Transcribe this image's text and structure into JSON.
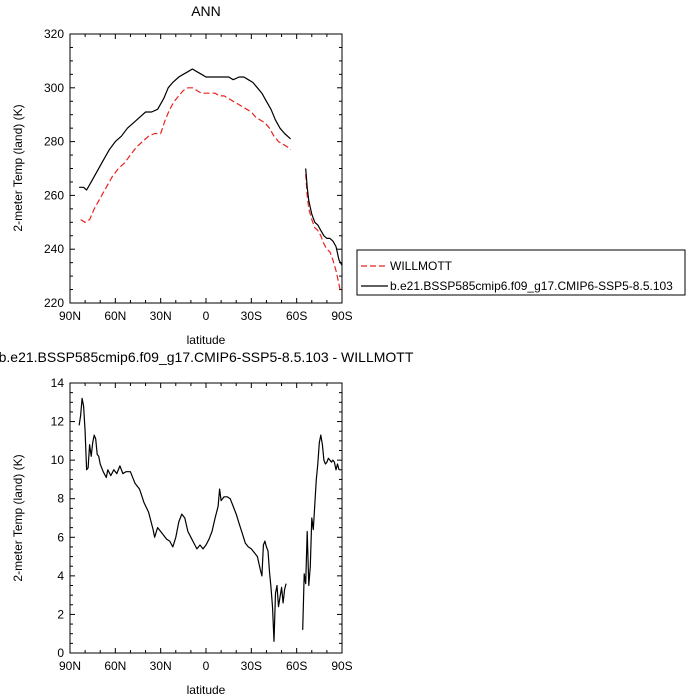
{
  "chart_data": [
    {
      "type": "line",
      "title": "ANN",
      "xlabel": "latitude",
      "ylabel": "2-meter Temp (land) (K)",
      "xlim": [
        90,
        -90
      ],
      "ylim": [
        220,
        320
      ],
      "x_ticks": [
        90,
        60,
        30,
        0,
        -30,
        -60,
        -90
      ],
      "x_tick_labels": [
        "90N",
        "60N",
        "30N",
        "0",
        "30S",
        "60S",
        "90S"
      ],
      "y_ticks": [
        220,
        240,
        260,
        280,
        300,
        320
      ],
      "y_tick_labels": [
        "220",
        "240",
        "260",
        "280",
        "300",
        "320"
      ],
      "legend_position": "right",
      "series": [
        {
          "name": "WILLMOTT",
          "color": "#e8231f",
          "dash": "dashed",
          "segments": [
            [
              [
                83,
                251
              ],
              [
                80,
                250
              ],
              [
                77,
                251
              ],
              [
                74,
                255
              ],
              [
                70,
                259
              ],
              [
                66,
                263
              ],
              [
                62,
                267
              ],
              [
                58,
                270
              ],
              [
                54,
                272
              ],
              [
                50,
                275
              ],
              [
                46,
                278
              ],
              [
                42,
                280
              ],
              [
                38,
                282
              ],
              [
                34,
                283
              ],
              [
                30,
                283
              ],
              [
                27,
                288
              ],
              [
                24,
                292
              ],
              [
                21,
                295
              ],
              [
                18,
                297
              ],
              [
                15,
                299
              ],
              [
                12,
                300
              ],
              [
                9,
                300
              ],
              [
                6,
                299
              ],
              [
                3,
                298
              ],
              [
                0,
                298
              ],
              [
                -3,
                298
              ],
              [
                -6,
                298
              ],
              [
                -9,
                297
              ],
              [
                -12,
                297
              ],
              [
                -15,
                296
              ],
              [
                -18,
                295
              ],
              [
                -21,
                294
              ],
              [
                -24,
                293
              ],
              [
                -27,
                292
              ],
              [
                -30,
                291
              ],
              [
                -33,
                289
              ],
              [
                -36,
                288
              ],
              [
                -39,
                287
              ],
              [
                -42,
                285
              ],
              [
                -45,
                282
              ],
              [
                -48,
                280
              ],
              [
                -51,
                279
              ],
              [
                -54,
                278
              ],
              [
                -56,
                277
              ]
            ],
            [
              [
                -66,
                268
              ],
              [
                -67,
                260
              ],
              [
                -68,
                255
              ],
              [
                -70,
                251
              ],
              [
                -72,
                248
              ],
              [
                -74,
                247
              ],
              [
                -76,
                245
              ],
              [
                -78,
                242
              ],
              [
                -80,
                240
              ],
              [
                -82,
                239
              ],
              [
                -84,
                236
              ],
              [
                -86,
                232
              ],
              [
                -88,
                227
              ],
              [
                -89,
                224
              ]
            ]
          ]
        },
        {
          "name": "b.e21.BSSP585cmip6.f09_g17.CMIP6-SSP5-8.5.103",
          "color": "#000000",
          "dash": "solid",
          "segments": [
            [
              [
                84,
                263
              ],
              [
                81,
                263
              ],
              [
                79,
                262
              ],
              [
                76,
                265
              ],
              [
                72,
                269
              ],
              [
                68,
                273
              ],
              [
                64,
                277
              ],
              [
                60,
                280
              ],
              [
                56,
                282
              ],
              [
                52,
                285
              ],
              [
                48,
                287
              ],
              [
                44,
                289
              ],
              [
                40,
                291
              ],
              [
                36,
                291
              ],
              [
                32,
                292
              ],
              [
                28,
                296
              ],
              [
                25,
                300
              ],
              [
                22,
                302
              ],
              [
                18,
                304
              ],
              [
                15,
                305
              ],
              [
                12,
                306
              ],
              [
                9,
                307
              ],
              [
                6,
                306
              ],
              [
                3,
                305
              ],
              [
                0,
                304
              ],
              [
                -5,
                304
              ],
              [
                -10,
                304
              ],
              [
                -15,
                304
              ],
              [
                -18,
                303
              ],
              [
                -22,
                304
              ],
              [
                -25,
                304
              ],
              [
                -28,
                303
              ],
              [
                -31,
                302
              ],
              [
                -34,
                300
              ],
              [
                -37,
                298
              ],
              [
                -40,
                295
              ],
              [
                -43,
                292
              ],
              [
                -46,
                288
              ],
              [
                -49,
                285
              ],
              [
                -52,
                283
              ],
              [
                -56,
                281
              ]
            ],
            [
              [
                -66,
                270
              ],
              [
                -67,
                263
              ],
              [
                -68,
                258
              ],
              [
                -70,
                253
              ],
              [
                -72,
                250
              ],
              [
                -74,
                249
              ],
              [
                -76,
                247
              ],
              [
                -78,
                245
              ],
              [
                -80,
                244
              ],
              [
                -82,
                244
              ],
              [
                -84,
                243
              ],
              [
                -86,
                241
              ],
              [
                -88,
                236
              ],
              [
                -90,
                234
              ]
            ]
          ]
        }
      ]
    },
    {
      "type": "line",
      "title": "b.e21.BSSP585cmip6.f09_g17.CMIP6-SSP5-8.5.103 - WILLMOTT",
      "xlabel": "latitude",
      "ylabel": "2-meter Temp (land) (K)",
      "xlim": [
        90,
        -90
      ],
      "ylim": [
        0,
        14
      ],
      "x_ticks": [
        90,
        60,
        30,
        0,
        -30,
        -60,
        -90
      ],
      "x_tick_labels": [
        "90N",
        "60N",
        "30N",
        "0",
        "30S",
        "60S",
        "90S"
      ],
      "y_ticks": [
        0,
        2,
        4,
        6,
        8,
        10,
        12,
        14
      ],
      "y_tick_labels": [
        "0",
        "2",
        "4",
        "6",
        "8",
        "10",
        "12",
        "14"
      ],
      "series": [
        {
          "color": "#000000",
          "dash": "solid",
          "segments": [
            [
              [
                84,
                11.8
              ],
              [
                83,
                12.3
              ],
              [
                82,
                13.2
              ],
              [
                81,
                12.8
              ],
              [
                80,
                11.5
              ],
              [
                79,
                9.5
              ],
              [
                78,
                9.6
              ],
              [
                77,
                10.8
              ],
              [
                76,
                10.2
              ],
              [
                75,
                10.9
              ],
              [
                74,
                11.3
              ],
              [
                73,
                11.1
              ],
              [
                72,
                10.3
              ],
              [
                71,
                10.2
              ],
              [
                70,
                9.8
              ],
              [
                68,
                9.4
              ],
              [
                66,
                9.1
              ],
              [
                65,
                9.5
              ],
              [
                63,
                9.2
              ],
              [
                61,
                9.5
              ],
              [
                59,
                9.3
              ],
              [
                57,
                9.7
              ],
              [
                55,
                9.3
              ],
              [
                53,
                9.4
              ],
              [
                50,
                9.4
              ],
              [
                47,
                8.8
              ],
              [
                44,
                8.5
              ],
              [
                41,
                7.8
              ],
              [
                38,
                7.3
              ],
              [
                35,
                6.4
              ],
              [
                34,
                6.0
              ],
              [
                32,
                6.5
              ],
              [
                30,
                6.3
              ],
              [
                28,
                6.1
              ],
              [
                26,
                5.9
              ],
              [
                24,
                5.8
              ],
              [
                22,
                5.5
              ],
              [
                20,
                6.0
              ],
              [
                18,
                6.8
              ],
              [
                16,
                7.2
              ],
              [
                14,
                7.0
              ],
              [
                12,
                6.3
              ],
              [
                10,
                6.0
              ],
              [
                8,
                5.7
              ],
              [
                6,
                5.4
              ],
              [
                4,
                5.6
              ],
              [
                2,
                5.4
              ],
              [
                0,
                5.6
              ],
              [
                -2,
                5.9
              ],
              [
                -4,
                6.3
              ],
              [
                -6,
                7.0
              ],
              [
                -8,
                7.6
              ],
              [
                -9,
                8.5
              ],
              [
                -10,
                7.9
              ],
              [
                -12,
                8.1
              ],
              [
                -14,
                8.1
              ],
              [
                -16,
                8.0
              ],
              [
                -18,
                7.6
              ],
              [
                -20,
                7.2
              ],
              [
                -22,
                6.7
              ],
              [
                -24,
                6.2
              ],
              [
                -26,
                5.7
              ],
              [
                -28,
                5.5
              ],
              [
                -30,
                5.4
              ],
              [
                -32,
                5.2
              ],
              [
                -34,
                5.0
              ],
              [
                -36,
                4.3
              ],
              [
                -37,
                4.0
              ],
              [
                -38,
                5.6
              ],
              [
                -39,
                5.8
              ],
              [
                -40,
                5.5
              ],
              [
                -41,
                5.3
              ],
              [
                -42,
                4.2
              ],
              [
                -43,
                3.4
              ],
              [
                -44,
                2.4
              ],
              [
                -45,
                0.6
              ],
              [
                -46,
                3.1
              ],
              [
                -47,
                3.5
              ],
              [
                -48,
                2.4
              ],
              [
                -49,
                2.9
              ],
              [
                -50,
                3.4
              ],
              [
                -51,
                2.6
              ],
              [
                -52,
                3.3
              ],
              [
                -53,
                3.6
              ]
            ],
            [
              [
                -64,
                1.2
              ],
              [
                -65,
                4.1
              ],
              [
                -66,
                3.6
              ],
              [
                -67,
                6.3
              ],
              [
                -68,
                3.5
              ],
              [
                -69,
                4.5
              ],
              [
                -70,
                7.0
              ],
              [
                -71,
                6.4
              ],
              [
                -72,
                7.7
              ],
              [
                -73,
                9.0
              ],
              [
                -74,
                9.8
              ],
              [
                -75,
                10.9
              ],
              [
                -76,
                11.3
              ],
              [
                -77,
                10.8
              ],
              [
                -78,
                10.0
              ],
              [
                -79,
                9.8
              ],
              [
                -80,
                9.9
              ],
              [
                -81,
                10.1
              ],
              [
                -82,
                10.0
              ],
              [
                -83,
                9.9
              ],
              [
                -84,
                10.0
              ],
              [
                -85,
                9.9
              ],
              [
                -86,
                9.5
              ],
              [
                -87,
                9.8
              ],
              [
                -88,
                9.5
              ]
            ]
          ]
        }
      ]
    }
  ]
}
